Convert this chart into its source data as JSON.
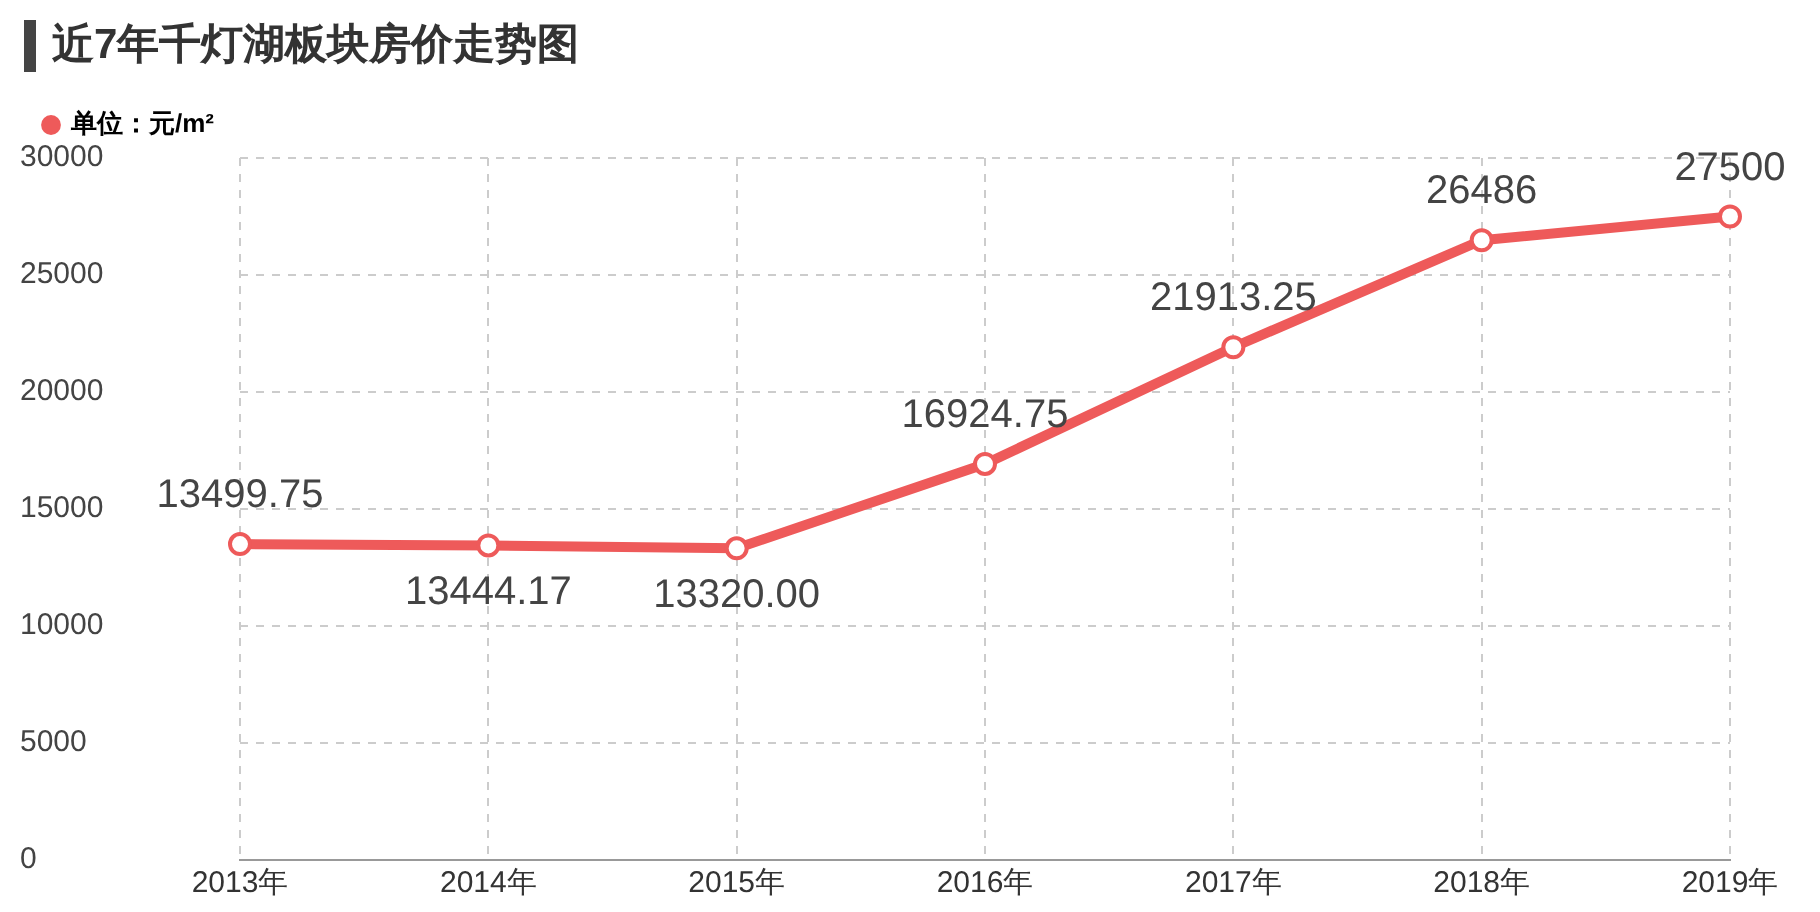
{
  "chart_data": {
    "type": "line",
    "title": "近7年千灯湖板块房价走势图",
    "categories": [
      "2013年",
      "2014年",
      "2015年",
      "2016年",
      "2017年",
      "2018年",
      "2019年"
    ],
    "series": [
      {
        "name": "单位：元/m²",
        "color": "#ee5a5a",
        "values": [
          13499.75,
          13444.17,
          13320,
          16924.75,
          21913.25,
          26486,
          27500
        ],
        "value_labels": [
          "13499.75",
          "13444.17",
          "13320.00",
          "16924.75",
          "21913.25",
          "26486",
          "27500"
        ]
      }
    ],
    "ylim": [
      0,
      30000
    ],
    "yticks": [
      0,
      5000,
      10000,
      15000,
      20000,
      25000,
      30000
    ],
    "grid": true,
    "legend": "top left",
    "marker": "circle",
    "line_style": "solid"
  }
}
